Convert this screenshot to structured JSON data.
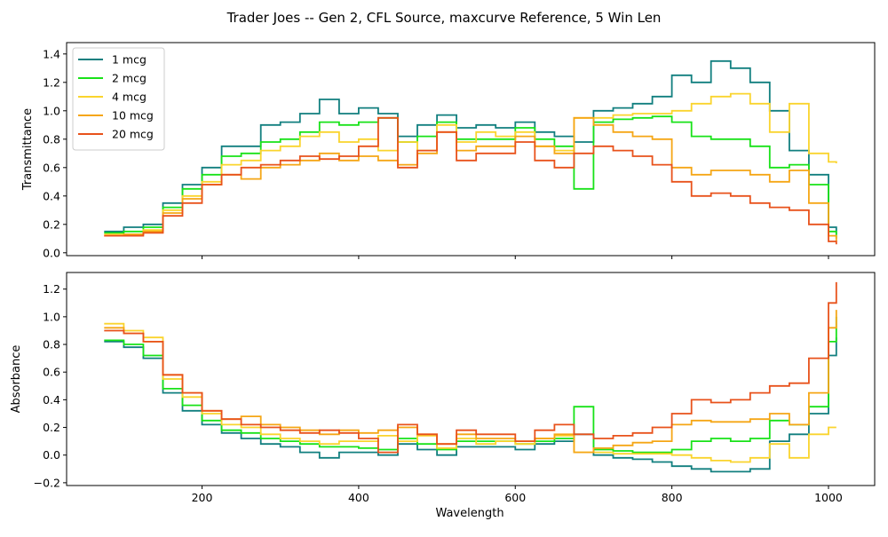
{
  "chart_data": {
    "type": "line",
    "title": "Trader Joes -- Gen 2, CFL Source, maxcurve Reference, 5 Win Len",
    "xlabel": "Wavelength",
    "xlim": [
      27,
      1059
    ],
    "xticks": [
      200,
      400,
      600,
      800,
      1000
    ],
    "x": [
      75,
      100,
      125,
      150,
      175,
      200,
      225,
      250,
      275,
      300,
      325,
      350,
      375,
      400,
      425,
      450,
      475,
      500,
      525,
      550,
      575,
      600,
      625,
      650,
      675,
      700,
      725,
      750,
      775,
      800,
      825,
      850,
      875,
      900,
      925,
      950,
      975,
      1000,
      1010
    ],
    "colors": {
      "1 mcg": "#117f7f",
      "2 mcg": "#18e218",
      "4 mcg": "#fad42d",
      "10 mcg": "#f5a615",
      "20 mcg": "#e8521b"
    },
    "legend_position": "top-left",
    "grid": false,
    "panels": [
      {
        "ylabel": "Transmittance",
        "ylim": [
          -0.02,
          1.48
        ],
        "yticks": [
          "0.0",
          "0.2",
          "0.4",
          "0.6",
          "0.8",
          "1.0",
          "1.2",
          "1.4"
        ],
        "ytick_values": [
          0,
          0.2,
          0.4,
          0.6,
          0.8,
          1.0,
          1.2,
          1.4
        ],
        "show_xtick_labels": false,
        "series": [
          {
            "name": "1 mcg",
            "values": [
              0.15,
              0.18,
              0.2,
              0.35,
              0.48,
              0.6,
              0.75,
              0.75,
              0.9,
              0.92,
              0.98,
              1.08,
              0.98,
              1.02,
              0.98,
              0.82,
              0.9,
              0.97,
              0.88,
              0.9,
              0.88,
              0.92,
              0.85,
              0.82,
              0.78,
              1.0,
              1.02,
              1.05,
              1.1,
              1.25,
              1.2,
              1.35,
              1.3,
              1.2,
              1.0,
              0.72,
              0.55,
              0.18,
              0.13
            ]
          },
          {
            "name": "2 mcg",
            "values": [
              0.14,
              0.15,
              0.18,
              0.32,
              0.45,
              0.55,
              0.68,
              0.7,
              0.78,
              0.8,
              0.85,
              0.92,
              0.9,
              0.92,
              0.95,
              0.78,
              0.82,
              0.92,
              0.8,
              0.8,
              0.8,
              0.88,
              0.8,
              0.75,
              0.45,
              0.92,
              0.94,
              0.95,
              0.96,
              0.92,
              0.82,
              0.8,
              0.8,
              0.75,
              0.6,
              0.62,
              0.48,
              0.15,
              0.1
            ]
          },
          {
            "name": "4 mcg",
            "values": [
              0.13,
              0.13,
              0.16,
              0.3,
              0.4,
              0.5,
              0.62,
              0.65,
              0.72,
              0.75,
              0.82,
              0.85,
              0.78,
              0.8,
              0.72,
              0.78,
              0.72,
              0.9,
              0.78,
              0.85,
              0.82,
              0.85,
              0.75,
              0.72,
              0.95,
              0.95,
              0.97,
              0.98,
              0.98,
              1.0,
              1.05,
              1.1,
              1.12,
              1.05,
              0.85,
              1.05,
              0.7,
              0.64,
              0.63
            ]
          },
          {
            "name": "10 mcg",
            "values": [
              0.12,
              0.13,
              0.15,
              0.28,
              0.38,
              0.48,
              0.55,
              0.52,
              0.6,
              0.62,
              0.65,
              0.7,
              0.65,
              0.68,
              0.65,
              0.62,
              0.7,
              0.85,
              0.72,
              0.75,
              0.75,
              0.82,
              0.75,
              0.7,
              0.95,
              0.9,
              0.85,
              0.82,
              0.8,
              0.6,
              0.55,
              0.58,
              0.58,
              0.55,
              0.5,
              0.58,
              0.35,
              0.12,
              0.08
            ]
          },
          {
            "name": "20 mcg",
            "values": [
              0.12,
              0.12,
              0.14,
              0.26,
              0.35,
              0.48,
              0.55,
              0.6,
              0.62,
              0.65,
              0.68,
              0.66,
              0.68,
              0.75,
              0.95,
              0.6,
              0.72,
              0.85,
              0.65,
              0.7,
              0.7,
              0.78,
              0.65,
              0.6,
              0.7,
              0.75,
              0.72,
              0.68,
              0.62,
              0.5,
              0.4,
              0.42,
              0.4,
              0.35,
              0.32,
              0.3,
              0.2,
              0.08,
              0.06
            ]
          }
        ]
      },
      {
        "ylabel": "Absorbance",
        "ylim": [
          -0.22,
          1.32
        ],
        "yticks": [
          "−0.2",
          "0.0",
          "0.2",
          "0.4",
          "0.6",
          "0.8",
          "1.0",
          "1.2"
        ],
        "ytick_values": [
          -0.2,
          0,
          0.2,
          0.4,
          0.6,
          0.8,
          1.0,
          1.2
        ],
        "show_xtick_labels": true,
        "series": [
          {
            "name": "1 mcg",
            "values": [
              0.82,
              0.78,
              0.7,
              0.45,
              0.32,
              0.22,
              0.16,
              0.12,
              0.08,
              0.06,
              0.02,
              -0.02,
              0.02,
              0.02,
              0.0,
              0.08,
              0.04,
              0.0,
              0.06,
              0.06,
              0.06,
              0.04,
              0.08,
              0.1,
              0.15,
              0.0,
              -0.02,
              -0.03,
              -0.05,
              -0.08,
              -0.1,
              -0.12,
              -0.12,
              -0.1,
              0.1,
              0.15,
              0.3,
              0.72,
              0.85
            ]
          },
          {
            "name": "2 mcg",
            "values": [
              0.83,
              0.8,
              0.72,
              0.48,
              0.36,
              0.25,
              0.18,
              0.16,
              0.12,
              0.1,
              0.08,
              0.06,
              0.06,
              0.05,
              0.04,
              0.12,
              0.08,
              0.04,
              0.1,
              0.1,
              0.1,
              0.08,
              0.1,
              0.12,
              0.35,
              0.04,
              0.03,
              0.02,
              0.02,
              0.04,
              0.1,
              0.12,
              0.1,
              0.12,
              0.25,
              0.22,
              0.35,
              0.82,
              1.0
            ]
          },
          {
            "name": "4 mcg",
            "values": [
              0.95,
              0.9,
              0.85,
              0.55,
              0.42,
              0.3,
              0.22,
              0.2,
              0.15,
              0.12,
              0.1,
              0.08,
              0.1,
              0.1,
              0.14,
              0.1,
              0.14,
              0.05,
              0.12,
              0.08,
              0.1,
              0.08,
              0.12,
              0.14,
              0.02,
              0.02,
              0.01,
              0.01,
              0.01,
              0.0,
              -0.02,
              -0.04,
              -0.05,
              -0.02,
              0.08,
              -0.02,
              0.15,
              0.2,
              0.2
            ]
          },
          {
            "name": "10 mcg",
            "values": [
              0.92,
              0.88,
              0.82,
              0.58,
              0.45,
              0.32,
              0.26,
              0.28,
              0.22,
              0.2,
              0.18,
              0.15,
              0.18,
              0.16,
              0.18,
              0.2,
              0.15,
              0.08,
              0.15,
              0.12,
              0.12,
              0.1,
              0.12,
              0.15,
              0.02,
              0.05,
              0.07,
              0.09,
              0.1,
              0.22,
              0.25,
              0.24,
              0.24,
              0.26,
              0.3,
              0.22,
              0.45,
              0.92,
              1.05
            ]
          },
          {
            "name": "20 mcg",
            "values": [
              0.9,
              0.88,
              0.82,
              0.58,
              0.45,
              0.32,
              0.26,
              0.22,
              0.2,
              0.18,
              0.16,
              0.18,
              0.16,
              0.12,
              0.02,
              0.22,
              0.15,
              0.08,
              0.18,
              0.15,
              0.15,
              0.1,
              0.18,
              0.22,
              0.15,
              0.12,
              0.14,
              0.16,
              0.2,
              0.3,
              0.4,
              0.38,
              0.4,
              0.45,
              0.5,
              0.52,
              0.7,
              1.1,
              1.25
            ]
          }
        ]
      }
    ]
  }
}
